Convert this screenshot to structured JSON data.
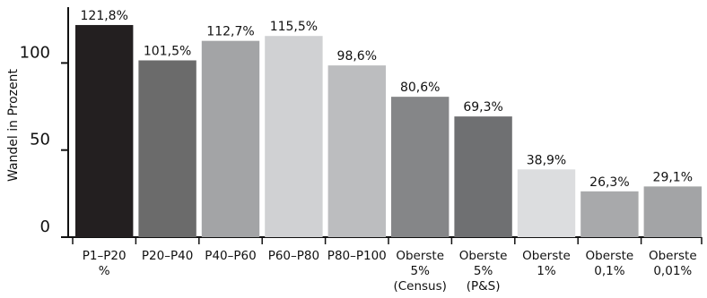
{
  "chart_data": {
    "type": "bar",
    "title": "",
    "xlabel": "",
    "ylabel": "Wandel in Prozent",
    "ylim": [
      0,
      130
    ],
    "yticks": [
      "0",
      "50",
      "100"
    ],
    "grid": false,
    "legend": "none",
    "categories": [
      [
        "P1–P20",
        "%"
      ],
      [
        "P20–P40"
      ],
      [
        "P40–P60"
      ],
      [
        "P60–P80"
      ],
      [
        "P80–P100"
      ],
      [
        "Oberste",
        "5%",
        "(Census)"
      ],
      [
        "Oberste",
        "5%",
        "(P&S)"
      ],
      [
        "Oberste",
        "1%"
      ],
      [
        "Oberste",
        "0,1%"
      ],
      [
        "Oberste",
        "0,01%"
      ]
    ],
    "values": [
      121.8,
      101.5,
      112.7,
      115.5,
      98.6,
      80.6,
      69.3,
      38.9,
      26.3,
      29.1
    ],
    "value_labels": [
      "121,8%",
      "101,5%",
      "112,7%",
      "115,5%",
      "98,6%",
      "80,6%",
      "69,3%",
      "38,9%",
      "26,3%",
      "29,1%"
    ],
    "colors": [
      "#231f20",
      "#6b6b6b",
      "#a3a4a6",
      "#d0d1d3",
      "#bcbdbf",
      "#858688",
      "#6f7072",
      "#dcdddf",
      "#a8a9ab",
      "#a3a4a6"
    ]
  }
}
